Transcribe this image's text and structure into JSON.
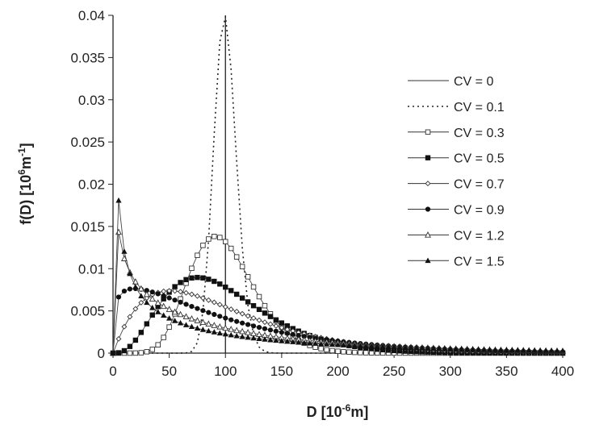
{
  "chart_data": {
    "type": "line",
    "title": "",
    "xlabel": "D [10-6m]",
    "xlabel_main": "D [10",
    "xlabel_sup": "-6",
    "xlabel_tail": "m]",
    "ylabel": "f(D) [106m-1]",
    "ylabel_main": "f(D) [10",
    "ylabel_sup": "6",
    "ylabel_mid": "m",
    "ylabel_sup2": "-1",
    "ylabel_tail": "]",
    "xlim": [
      0,
      400
    ],
    "ylim": [
      0,
      0.04
    ],
    "xticks": [
      "0",
      "50",
      "100",
      "150",
      "200",
      "250",
      "300",
      "350",
      "400"
    ],
    "yticks": [
      "0",
      "0.005",
      "0.01",
      "0.015",
      "0.02",
      "0.025",
      "0.03",
      "0.035",
      "0.04"
    ],
    "grid": false,
    "legend_position": "top-right",
    "distribution": "gamma",
    "mean_D": 100,
    "x_step": 5,
    "series": [
      {
        "name": "CV = 0",
        "cv": 0,
        "style": "solid",
        "marker": "none"
      },
      {
        "name": "CV = 0.1",
        "cv": 0.1,
        "style": "dotted",
        "marker": "none"
      },
      {
        "name": "CV = 0.3",
        "cv": 0.3,
        "style": "solid",
        "marker": "open-square"
      },
      {
        "name": "CV = 0.5",
        "cv": 0.5,
        "style": "solid",
        "marker": "filled-square"
      },
      {
        "name": "CV = 0.7",
        "cv": 0.7,
        "style": "solid",
        "marker": "open-diamond"
      },
      {
        "name": "CV = 0.9",
        "cv": 0.9,
        "style": "solid",
        "marker": "filled-circle"
      },
      {
        "name": "CV = 1.2",
        "cv": 1.2,
        "style": "solid",
        "marker": "open-triangle"
      },
      {
        "name": "CV = 1.5",
        "cv": 1.5,
        "style": "solid",
        "marker": "filled-triangle"
      }
    ]
  }
}
